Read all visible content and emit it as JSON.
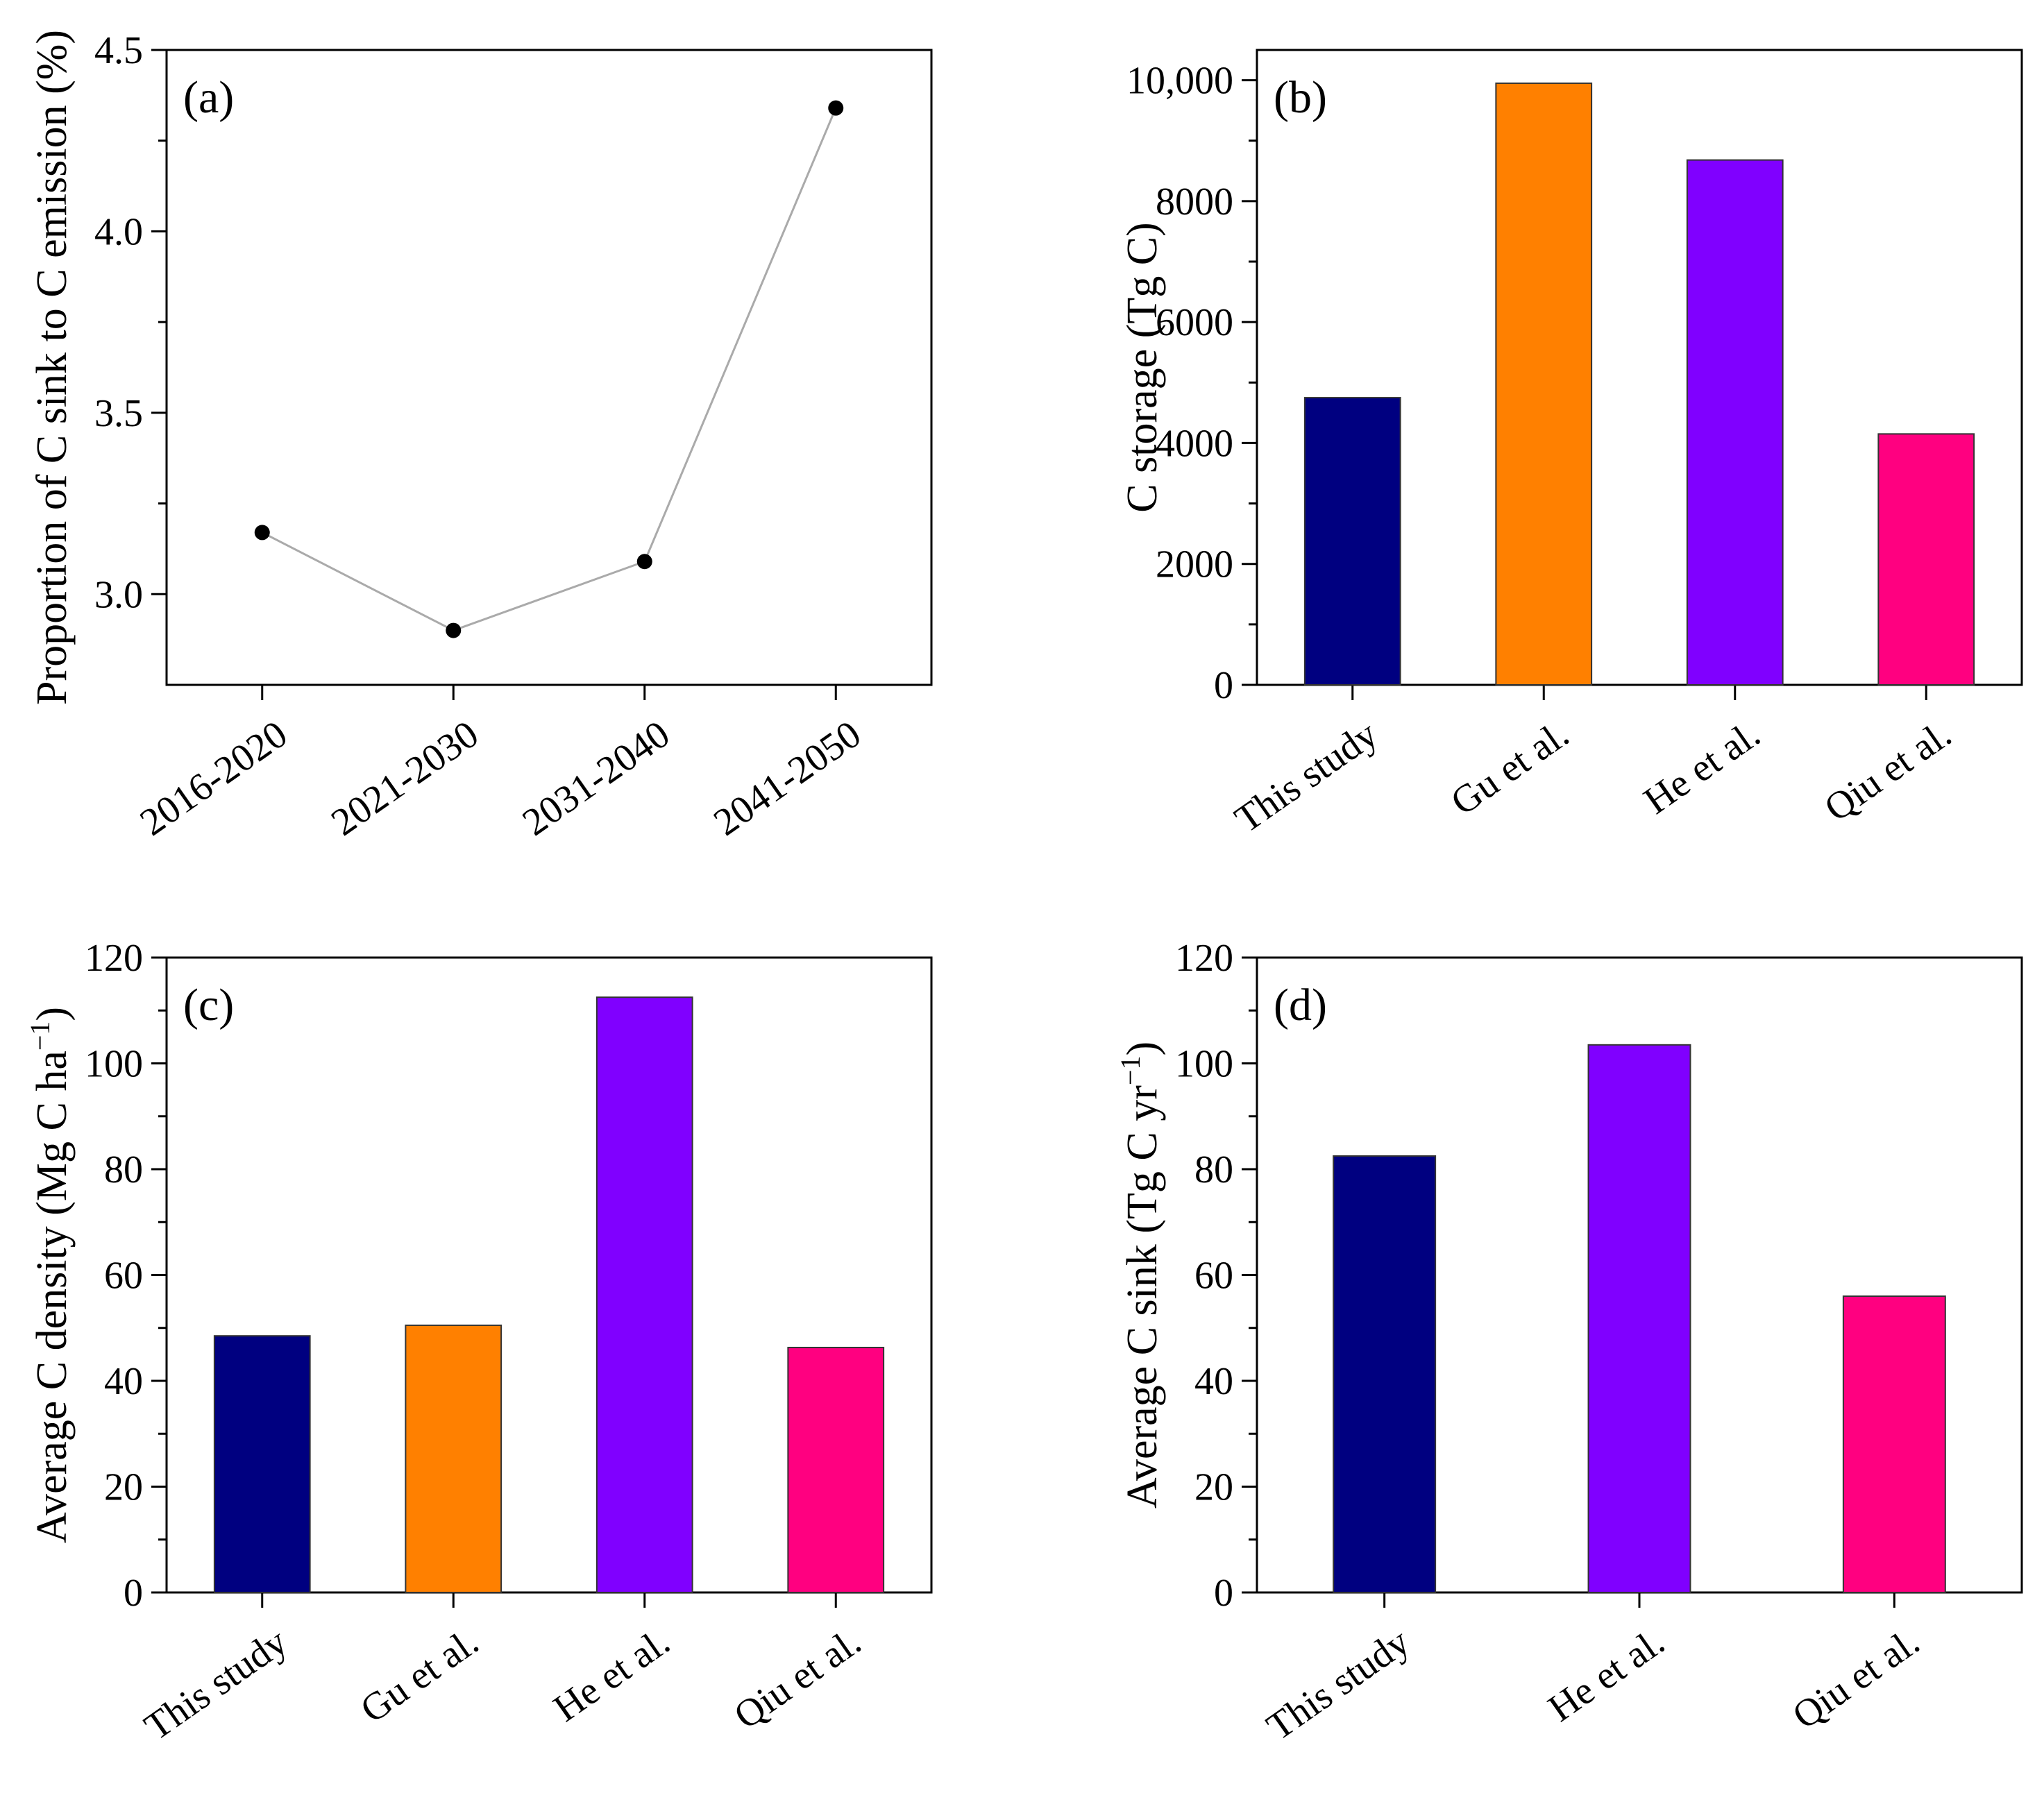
{
  "chart_data": [
    {
      "id": "a",
      "type": "line",
      "panel_label": "(a)",
      "categories": [
        "2016-2020",
        "2021-2030",
        "2031-2040",
        "2041-2050"
      ],
      "values": [
        3.17,
        2.9,
        3.09,
        4.34
      ],
      "ylabel": "Proportion of C sink to C emission (%)",
      "xlabel": "",
      "ylim": [
        2.75,
        4.5
      ],
      "yticks": [
        3.0,
        3.5,
        4.0,
        4.5
      ],
      "ytick_labels": [
        "3.0",
        "3.5",
        "4.0",
        "4.5"
      ],
      "line_color": "#aaaaaa",
      "marker_color": "#000000",
      "grid": false
    },
    {
      "id": "b",
      "type": "bar",
      "panel_label": "(b)",
      "categories": [
        "This study",
        "Gu et al.",
        "He et al.",
        "Qiu et al."
      ],
      "values": [
        4750,
        9950,
        8680,
        4150
      ],
      "colors": [
        "#000080",
        "#ff8000",
        "#8000ff",
        "#ff0080"
      ],
      "ylabel": "C storage (Tg C)",
      "xlabel": "",
      "ylim": [
        0,
        10500
      ],
      "yticks": [
        0,
        2000,
        4000,
        6000,
        8000,
        10000
      ],
      "ytick_labels": [
        "0",
        "2000",
        "4000",
        "6000",
        "8000",
        "10,000"
      ],
      "grid": false
    },
    {
      "id": "c",
      "type": "bar",
      "panel_label": "(c)",
      "categories": [
        "This study",
        "Gu et al.",
        "He et al.",
        "Qiu et al."
      ],
      "values": [
        48.5,
        50.5,
        112.5,
        46.3
      ],
      "colors": [
        "#000080",
        "#ff8000",
        "#8000ff",
        "#ff0080"
      ],
      "ylabel": "Average C density (Mg C ha",
      "ylabel_sup": "−1",
      "ylabel_suffix": ")",
      "xlabel": "",
      "ylim": [
        0,
        120
      ],
      "yticks": [
        0,
        20,
        40,
        60,
        80,
        100,
        120
      ],
      "ytick_labels": [
        "0",
        "20",
        "40",
        "60",
        "80",
        "100",
        "120"
      ],
      "grid": false
    },
    {
      "id": "d",
      "type": "bar",
      "panel_label": "(d)",
      "categories": [
        "This study",
        "He et al.",
        "Qiu et al."
      ],
      "values": [
        82.5,
        103.5,
        56
      ],
      "colors": [
        "#000080",
        "#8000ff",
        "#ff0080"
      ],
      "ylabel": "Average C sink (Tg C yr",
      "ylabel_sup": "−1",
      "ylabel_suffix": ")",
      "xlabel": "",
      "ylim": [
        0,
        120
      ],
      "yticks": [
        0,
        20,
        40,
        60,
        80,
        100,
        120
      ],
      "ytick_labels": [
        "0",
        "20",
        "40",
        "60",
        "80",
        "100",
        "120"
      ],
      "grid": false
    }
  ]
}
